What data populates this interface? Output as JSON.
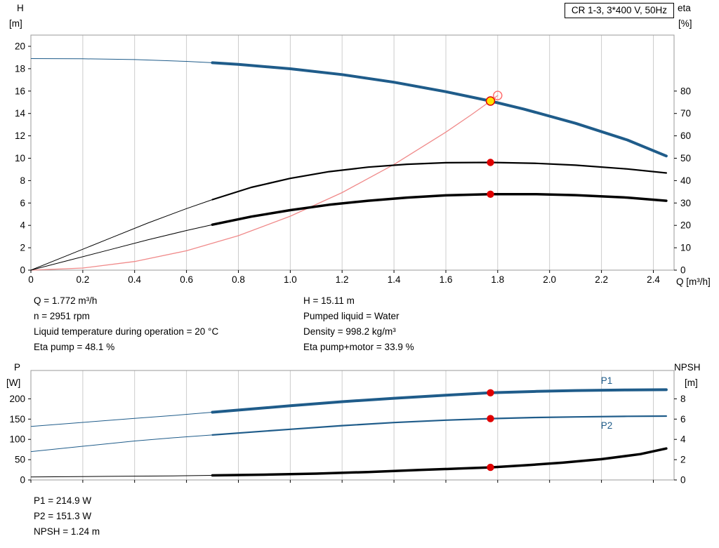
{
  "title_box": "CR 1-3, 3*400 V, 50Hz",
  "colors": {
    "curve_blue": "#1f5c8a",
    "curve_black": "#000000",
    "system_red": "#f08a8a",
    "marker_red": "#e00000",
    "marker_yellow": "#ffe400",
    "marker_open_red": "#ff6a6a",
    "grid": "#cccccc",
    "frame": "#999999"
  },
  "chart_data": [
    {
      "id": "qh-eta-chart",
      "type": "line",
      "x_axis": {
        "label": "Q [m³/h]",
        "lim": [
          0,
          2.48
        ],
        "ticks": [
          "0",
          "0.2",
          "0.4",
          "0.6",
          "0.8",
          "1.0",
          "1.2",
          "1.4",
          "1.6",
          "1.8",
          "2.0",
          "2.2",
          "2.4"
        ]
      },
      "left_axis": {
        "label": "H",
        "unit": "[m]",
        "lim": [
          0,
          21
        ],
        "ticks": [
          0,
          2,
          4,
          6,
          8,
          10,
          12,
          14,
          16,
          18,
          20
        ]
      },
      "right_axis": {
        "label": "eta",
        "unit": "[%]",
        "lim": [
          0,
          105
        ],
        "ticks": [
          0,
          10,
          20,
          30,
          40,
          50,
          60,
          70,
          80
        ]
      },
      "series": [
        {
          "name": "system-curve",
          "axis": "left",
          "color": "system_red",
          "width": 1.3,
          "points": [
            [
              0,
              0
            ],
            [
              0.2,
              0.19
            ],
            [
              0.4,
              0.77
            ],
            [
              0.6,
              1.73
            ],
            [
              0.8,
              3.08
            ],
            [
              1.0,
              4.82
            ],
            [
              1.2,
              6.93
            ],
            [
              1.4,
              9.44
            ],
            [
              1.6,
              12.33
            ],
            [
              1.7,
              13.91
            ],
            [
              1.772,
              15.11
            ],
            [
              1.8,
              15.6
            ]
          ]
        },
        {
          "name": "eta-pump-curve",
          "axis": "right",
          "color": "curve_black",
          "width": 2.2,
          "thin_until": 0.7,
          "thin_width": 1,
          "points": [
            [
              0,
              0
            ],
            [
              0.15,
              7
            ],
            [
              0.3,
              14
            ],
            [
              0.45,
              21
            ],
            [
              0.6,
              27.5
            ],
            [
              0.7,
              31.5
            ],
            [
              0.85,
              37
            ],
            [
              1.0,
              41
            ],
            [
              1.15,
              44
            ],
            [
              1.3,
              46
            ],
            [
              1.45,
              47.3
            ],
            [
              1.6,
              48
            ],
            [
              1.772,
              48.1
            ],
            [
              1.95,
              47.7
            ],
            [
              2.1,
              46.9
            ],
            [
              2.3,
              45.2
            ],
            [
              2.45,
              43.4
            ]
          ]
        },
        {
          "name": "eta-pump-motor-curve",
          "axis": "right",
          "color": "curve_black",
          "width": 3.5,
          "thin_until": 0.7,
          "thin_width": 1,
          "points": [
            [
              0,
              0
            ],
            [
              0.15,
              4.5
            ],
            [
              0.3,
              9
            ],
            [
              0.45,
              13.5
            ],
            [
              0.6,
              17.7
            ],
            [
              0.7,
              20.3
            ],
            [
              0.85,
              23.9
            ],
            [
              1.0,
              26.8
            ],
            [
              1.15,
              29.2
            ],
            [
              1.3,
              31
            ],
            [
              1.45,
              32.4
            ],
            [
              1.6,
              33.4
            ],
            [
              1.772,
              33.9
            ],
            [
              1.95,
              33.9
            ],
            [
              2.1,
              33.5
            ],
            [
              2.3,
              32.4
            ],
            [
              2.45,
              31
            ]
          ]
        },
        {
          "name": "pump-curve",
          "axis": "left",
          "color": "curve_blue",
          "width": 4,
          "thin_until": 0.7,
          "thin_width": 1,
          "points": [
            [
              0,
              18.9
            ],
            [
              0.2,
              18.88
            ],
            [
              0.4,
              18.81
            ],
            [
              0.6,
              18.65
            ],
            [
              0.7,
              18.53
            ],
            [
              0.8,
              18.38
            ],
            [
              1.0,
              17.99
            ],
            [
              1.2,
              17.47
            ],
            [
              1.4,
              16.79
            ],
            [
              1.6,
              15.94
            ],
            [
              1.772,
              15.11
            ],
            [
              1.9,
              14.39
            ],
            [
              2.1,
              13.12
            ],
            [
              2.3,
              11.63
            ],
            [
              2.45,
              10.2
            ]
          ]
        }
      ],
      "markers": [
        {
          "name": "duty-point",
          "axis": "left",
          "q": 1.772,
          "v": 15.11,
          "style": "yellow_dot"
        },
        {
          "name": "requested-duty-point",
          "axis": "left",
          "q": 1.8,
          "v": 15.6,
          "style": "open_circle"
        },
        {
          "name": "eta-pump-duty-point",
          "axis": "right",
          "q": 1.772,
          "v": 48.1,
          "style": "red_dot"
        },
        {
          "name": "eta-pump-motor-duty-point",
          "axis": "right",
          "q": 1.772,
          "v": 33.9,
          "style": "red_dot"
        }
      ]
    },
    {
      "id": "power-npsh-chart",
      "type": "line",
      "x_axis": {
        "lim": [
          0,
          2.48
        ],
        "ticks": [
          "0",
          "0.2",
          "0.4",
          "0.6",
          "0.8",
          "1.0",
          "1.2",
          "1.4",
          "1.6",
          "1.8",
          "2.0",
          "2.2",
          "2.4"
        ]
      },
      "left_axis": {
        "label": "P",
        "unit": "[W]",
        "lim": [
          0,
          270
        ],
        "ticks": [
          0,
          50,
          100,
          150,
          200
        ]
      },
      "right_axis": {
        "label": "NPSH",
        "unit": "[m]",
        "lim": [
          0,
          10.8
        ],
        "ticks": [
          0,
          2,
          4,
          6,
          8
        ]
      },
      "series": [
        {
          "name": "p1-curve",
          "axis": "left",
          "color": "curve_blue",
          "width": 4,
          "thin_until": 0.7,
          "thin_width": 1,
          "label": {
            "text": "P1",
            "q": 2.22,
            "v": 237
          },
          "points": [
            [
              0,
              132
            ],
            [
              0.2,
              142
            ],
            [
              0.4,
              152
            ],
            [
              0.55,
              159
            ],
            [
              0.7,
              167
            ],
            [
              0.85,
              175
            ],
            [
              1.0,
              183
            ],
            [
              1.2,
              193
            ],
            [
              1.4,
              201.5
            ],
            [
              1.6,
              209
            ],
            [
              1.772,
              214.9
            ],
            [
              1.95,
              218.5
            ],
            [
              2.1,
              220.5
            ],
            [
              2.3,
              222
            ],
            [
              2.45,
              222.5
            ]
          ]
        },
        {
          "name": "p2-curve",
          "axis": "left",
          "color": "curve_blue",
          "width": 2.2,
          "thin_until": 0.7,
          "thin_width": 1,
          "label": {
            "text": "P2",
            "q": 2.22,
            "v": 126
          },
          "points": [
            [
              0,
              70
            ],
            [
              0.2,
              83
            ],
            [
              0.4,
              96
            ],
            [
              0.55,
              104
            ],
            [
              0.7,
              111
            ],
            [
              0.85,
              118
            ],
            [
              1.0,
              125
            ],
            [
              1.2,
              134
            ],
            [
              1.4,
              141.5
            ],
            [
              1.6,
              147.5
            ],
            [
              1.772,
              151.3
            ],
            [
              1.95,
              154
            ],
            [
              2.1,
              155.5
            ],
            [
              2.3,
              157
            ],
            [
              2.45,
              157.5
            ]
          ]
        },
        {
          "name": "npsh-curve",
          "axis": "right",
          "color": "curve_black",
          "width": 3.5,
          "thin_until": 0.7,
          "thin_width": 1,
          "points": [
            [
              0,
              0.3
            ],
            [
              0.3,
              0.35
            ],
            [
              0.55,
              0.4
            ],
            [
              0.7,
              0.45
            ],
            [
              0.9,
              0.52
            ],
            [
              1.1,
              0.62
            ],
            [
              1.3,
              0.78
            ],
            [
              1.5,
              0.98
            ],
            [
              1.65,
              1.12
            ],
            [
              1.772,
              1.24
            ],
            [
              1.9,
              1.43
            ],
            [
              2.05,
              1.7
            ],
            [
              2.2,
              2.05
            ],
            [
              2.35,
              2.55
            ],
            [
              2.45,
              3.1
            ]
          ]
        }
      ],
      "markers": [
        {
          "name": "p1-duty-point",
          "axis": "left",
          "q": 1.772,
          "v": 214.9,
          "style": "red_dot"
        },
        {
          "name": "p2-duty-point",
          "axis": "left",
          "q": 1.772,
          "v": 151.3,
          "style": "red_dot"
        },
        {
          "name": "npsh-duty-point",
          "axis": "right",
          "q": 1.772,
          "v": 1.24,
          "style": "red_dot"
        }
      ]
    }
  ],
  "info_top": {
    "left": [
      "Q = 1.772 m³/h",
      "n = 2951 rpm",
      "Liquid temperature during operation = 20 °C",
      "Eta pump = 48.1 %"
    ],
    "right": [
      "H = 15.11 m",
      "Pumped liquid = Water",
      "Density = 998.2 kg/m³",
      "Eta pump+motor = 33.9 %"
    ]
  },
  "info_bottom": [
    "P1 = 214.9 W",
    "P2 = 151.3 W",
    "NPSH = 1.24 m"
  ]
}
